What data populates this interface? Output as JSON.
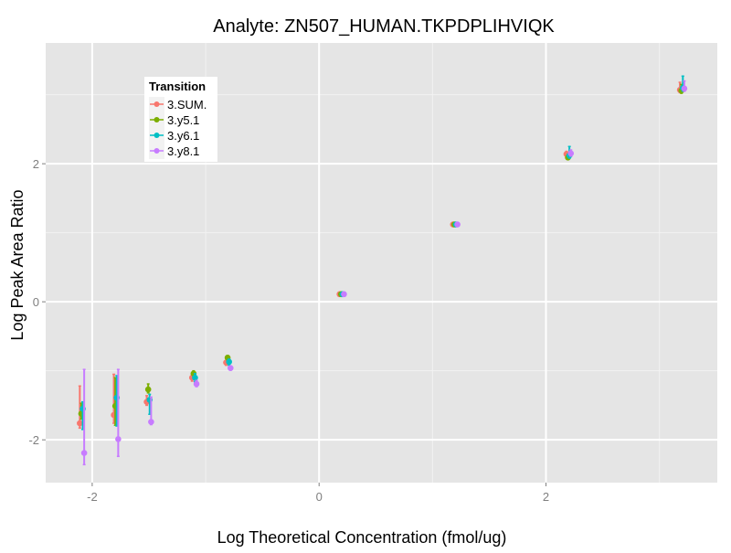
{
  "chart_data": {
    "type": "scatter",
    "title": "Analyte: ZN507_HUMAN.TKPDPLIHVIQK",
    "xlabel": "Log Theoretical Concentration (fmol/ug)",
    "ylabel": "Log Peak Area Ratio",
    "xlim": [
      -2.41,
      3.51
    ],
    "ylim": [
      -2.62,
      3.75
    ],
    "x_ticks": [
      -2,
      0,
      2
    ],
    "y_ticks": [
      -2,
      0,
      2
    ],
    "grid": true,
    "legend": {
      "title": "Transition",
      "position": "top-left"
    },
    "x": [
      -2.09,
      -1.79,
      -1.5,
      -1.1,
      -0.8,
      0.2,
      1.2,
      2.2,
      3.2
    ],
    "series": [
      {
        "name": "3.SUM.",
        "color": "#F8766D",
        "values": [
          -1.76,
          -1.64,
          -1.45,
          -1.1,
          -0.88,
          0.11,
          1.12,
          2.14,
          3.07
        ],
        "err_low": [
          -1.83,
          -1.76,
          -1.5,
          -1.15,
          -0.92,
          0.1,
          1.11,
          2.1,
          3.03
        ],
        "err_high": [
          -1.22,
          -1.05,
          -1.36,
          -1.05,
          -0.85,
          0.12,
          1.13,
          2.18,
          3.18
        ]
      },
      {
        "name": "3.y5.1",
        "color": "#7CAE00",
        "values": [
          -1.62,
          -1.51,
          -1.27,
          -1.04,
          -0.81,
          0.11,
          1.12,
          2.09,
          3.06
        ],
        "err_low": [
          -1.7,
          -1.79,
          -1.32,
          -1.08,
          -0.85,
          0.1,
          1.11,
          2.06,
          3.02
        ],
        "err_high": [
          -1.47,
          -1.1,
          -1.19,
          -1.0,
          -0.78,
          0.12,
          1.13,
          2.13,
          3.15
        ]
      },
      {
        "name": "3.y6.1",
        "color": "#00BFC4",
        "values": [
          -1.55,
          -1.39,
          -1.42,
          -1.1,
          -0.87,
          0.11,
          1.12,
          2.12,
          3.1
        ],
        "err_low": [
          -1.85,
          -1.8,
          -1.63,
          -1.16,
          -0.92,
          0.1,
          1.11,
          2.08,
          3.05
        ],
        "err_high": [
          -1.45,
          -1.07,
          -1.34,
          -1.04,
          -0.83,
          0.12,
          1.13,
          2.25,
          3.27
        ]
      },
      {
        "name": "3.y8.1",
        "color": "#C77CFF",
        "values": [
          -2.19,
          -1.99,
          -1.74,
          -1.19,
          -0.96,
          0.11,
          1.12,
          2.15,
          3.09
        ],
        "err_low": [
          -2.36,
          -2.24,
          -1.78,
          -1.23,
          -0.99,
          0.1,
          1.11,
          2.11,
          3.05
        ],
        "err_high": [
          -0.98,
          -0.98,
          -1.38,
          -1.14,
          -0.93,
          0.12,
          1.13,
          2.2,
          3.2
        ]
      }
    ]
  }
}
